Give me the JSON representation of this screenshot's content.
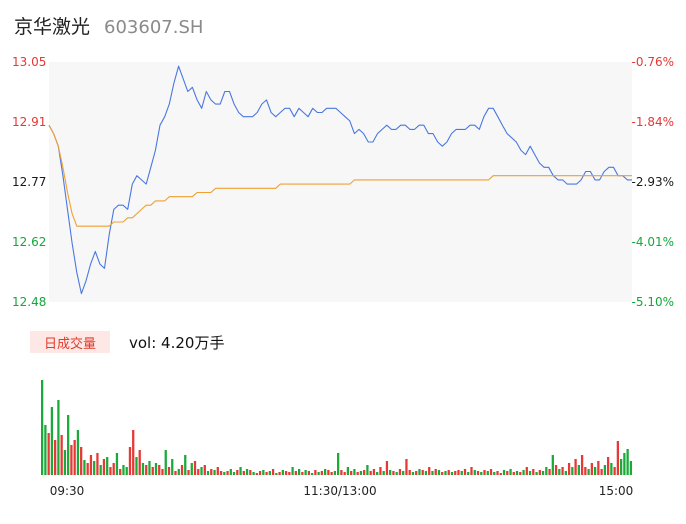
{
  "header": {
    "name": "京华激光",
    "code": "603607.SH"
  },
  "volume_panel": {
    "tag_label": "日成交量",
    "vol_label": "vol: 4.20万手"
  },
  "colors": {
    "price_line": "#4a78e0",
    "avg_line": "#f0a030",
    "up": "#e53935",
    "down": "#14a83b",
    "flat": "#1a1a1a",
    "vol_up": "#e53935",
    "vol_down": "#1aaa3a",
    "plot_bg": "#f7f7f7"
  },
  "chart_data": [
    {
      "type": "line",
      "title": "",
      "y_ticks": [
        "13.05",
        "12.91",
        "12.77",
        "12.62",
        "12.48"
      ],
      "pct_ticks": [
        "-0.76%",
        "-1.84%",
        "-2.93%",
        "-4.01%",
        "-5.10%"
      ],
      "x_ticks": [
        "09:30",
        "11:30/13:00",
        "15:00"
      ],
      "ylim": [
        12.48,
        13.05
      ],
      "series": [
        {
          "key": "price",
          "values": [
            12.9,
            12.88,
            12.85,
            12.78,
            12.7,
            12.62,
            12.55,
            12.5,
            12.53,
            12.57,
            12.6,
            12.57,
            12.56,
            12.64,
            12.7,
            12.71,
            12.71,
            12.7,
            12.76,
            12.78,
            12.77,
            12.76,
            12.8,
            12.84,
            12.9,
            12.92,
            12.95,
            13.0,
            13.04,
            13.01,
            12.98,
            12.99,
            12.96,
            12.94,
            12.98,
            12.96,
            12.95,
            12.95,
            12.98,
            12.98,
            12.95,
            12.93,
            12.92,
            12.92,
            12.92,
            12.93,
            12.95,
            12.96,
            12.93,
            12.92,
            12.93,
            12.94,
            12.94,
            12.92,
            12.94,
            12.93,
            12.92,
            12.94,
            12.93,
            12.93,
            12.94,
            12.94,
            12.94,
            12.93,
            12.92,
            12.91,
            12.88,
            12.89,
            12.88,
            12.86,
            12.86,
            12.88,
            12.89,
            12.9,
            12.89,
            12.89,
            12.9,
            12.9,
            12.89,
            12.89,
            12.9,
            12.9,
            12.88,
            12.88,
            12.86,
            12.85,
            12.86,
            12.88,
            12.89,
            12.89,
            12.89,
            12.9,
            12.9,
            12.89,
            12.92,
            12.94,
            12.94,
            12.92,
            12.9,
            12.88,
            12.87,
            12.86,
            12.84,
            12.83,
            12.85,
            12.83,
            12.81,
            12.8,
            12.8,
            12.78,
            12.77,
            12.77,
            12.76,
            12.76,
            12.76,
            12.77,
            12.79,
            12.79,
            12.77,
            12.77,
            12.79,
            12.8,
            12.8,
            12.78,
            12.78,
            12.77,
            12.77
          ]
        },
        {
          "key": "avg",
          "values": [
            12.9,
            12.88,
            12.85,
            12.8,
            12.74,
            12.69,
            12.66,
            12.66,
            12.66,
            12.66,
            12.66,
            12.66,
            12.66,
            12.66,
            12.67,
            12.67,
            12.67,
            12.68,
            12.68,
            12.69,
            12.7,
            12.71,
            12.71,
            12.72,
            12.72,
            12.72,
            12.73,
            12.73,
            12.73,
            12.73,
            12.73,
            12.73,
            12.74,
            12.74,
            12.74,
            12.74,
            12.75,
            12.75,
            12.75,
            12.75,
            12.75,
            12.75,
            12.75,
            12.75,
            12.75,
            12.75,
            12.75,
            12.75,
            12.75,
            12.75,
            12.76,
            12.76,
            12.76,
            12.76,
            12.76,
            12.76,
            12.76,
            12.76,
            12.76,
            12.76,
            12.76,
            12.76,
            12.76,
            12.76,
            12.76,
            12.76,
            12.77,
            12.77,
            12.77,
            12.77,
            12.77,
            12.77,
            12.77,
            12.77,
            12.77,
            12.77,
            12.77,
            12.77,
            12.77,
            12.77,
            12.77,
            12.77,
            12.77,
            12.77,
            12.77,
            12.77,
            12.77,
            12.77,
            12.77,
            12.77,
            12.77,
            12.77,
            12.77,
            12.77,
            12.77,
            12.77,
            12.78,
            12.78,
            12.78,
            12.78,
            12.78,
            12.78,
            12.78,
            12.78,
            12.78,
            12.78,
            12.78,
            12.78,
            12.78,
            12.78,
            12.78,
            12.78,
            12.78,
            12.78,
            12.78,
            12.78,
            12.78,
            12.78,
            12.78,
            12.78,
            12.78,
            12.78,
            12.78,
            12.78,
            12.78,
            12.78,
            12.78
          ]
        }
      ]
    },
    {
      "type": "bar",
      "title": "",
      "values": [
        95,
        50,
        42,
        68,
        35,
        75,
        40,
        25,
        60,
        30,
        35,
        45,
        28,
        15,
        12,
        20,
        14,
        22,
        10,
        16,
        18,
        8,
        12,
        22,
        6,
        10,
        8,
        28,
        45,
        18,
        25,
        12,
        10,
        14,
        8,
        12,
        10,
        6,
        25,
        8,
        16,
        4,
        6,
        10,
        20,
        5,
        12,
        14,
        6,
        8,
        10,
        4,
        6,
        5,
        8,
        4,
        3,
        4,
        6,
        3,
        5,
        8,
        4,
        6,
        5,
        3,
        2,
        4,
        5,
        3,
        4,
        6,
        2,
        3,
        5,
        4,
        3,
        8,
        4,
        6,
        3,
        5,
        4,
        2,
        5,
        3,
        4,
        6,
        5,
        3,
        4,
        22,
        5,
        3,
        8,
        4,
        6,
        3,
        4,
        5,
        10,
        4,
        6,
        3,
        8,
        4,
        14,
        5,
        4,
        3,
        6,
        4,
        16,
        5,
        3,
        4,
        6,
        5,
        4,
        8,
        4,
        6,
        5,
        3,
        4,
        5,
        3,
        4,
        5,
        4,
        6,
        3,
        8,
        5,
        4,
        3,
        5,
        4,
        6,
        3,
        4,
        2,
        5,
        4,
        6,
        3,
        4,
        3,
        5,
        8,
        4,
        6,
        3,
        5,
        4,
        8,
        6,
        20,
        10,
        6,
        8,
        4,
        12,
        8,
        16,
        10,
        20,
        8,
        6,
        12,
        8,
        14,
        6,
        10,
        18,
        12,
        8,
        34,
        16,
        22,
        26,
        14
      ],
      "directions": [
        "d",
        "d",
        "u",
        "d",
        "u",
        "d",
        "u",
        "d",
        "d",
        "u",
        "u",
        "d",
        "u",
        "d",
        "u",
        "u",
        "d",
        "u",
        "d",
        "u",
        "d",
        "u",
        "u",
        "d",
        "u",
        "d",
        "d",
        "u",
        "u",
        "d",
        "u",
        "d",
        "u",
        "d",
        "u",
        "d",
        "u",
        "u",
        "d",
        "u",
        "d",
        "u",
        "d",
        "u",
        "d",
        "u",
        "d",
        "u",
        "u",
        "d",
        "u",
        "d",
        "u",
        "d",
        "u",
        "u",
        "d",
        "u",
        "d",
        "d",
        "u",
        "d",
        "u",
        "d",
        "u",
        "d",
        "u",
        "u",
        "d",
        "u",
        "d",
        "u",
        "d",
        "u",
        "d",
        "u",
        "u",
        "d",
        "u",
        "d",
        "u",
        "d",
        "u",
        "d",
        "u",
        "d",
        "u",
        "d",
        "u",
        "u",
        "d",
        "d",
        "u",
        "u",
        "d",
        "u",
        "d",
        "u",
        "d",
        "u",
        "d",
        "u",
        "u",
        "d",
        "u",
        "d",
        "u",
        "d",
        "u",
        "d",
        "u",
        "d",
        "u",
        "u",
        "d",
        "u",
        "d",
        "u",
        "d",
        "u",
        "d",
        "u",
        "d",
        "u",
        "d",
        "u",
        "d",
        "u",
        "u",
        "d",
        "u",
        "d",
        "u",
        "d",
        "u",
        "d",
        "u",
        "d",
        "u",
        "d",
        "u",
        "u",
        "d",
        "u",
        "d",
        "u",
        "d",
        "u",
        "d",
        "u",
        "d",
        "u",
        "d",
        "u",
        "d",
        "d",
        "u",
        "d",
        "u",
        "d",
        "u",
        "d",
        "u",
        "d",
        "u",
        "d",
        "u",
        "u",
        "d",
        "u",
        "d",
        "u",
        "u",
        "d",
        "u",
        "d",
        "u",
        "u"
      ]
    }
  ]
}
